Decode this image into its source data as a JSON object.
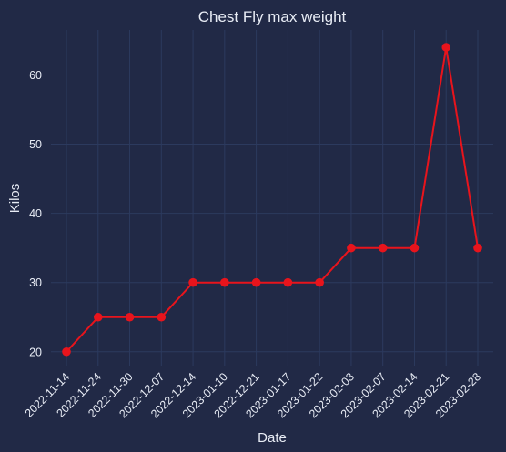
{
  "chart_data": {
    "type": "line",
    "title": "Chest Fly max weight",
    "xlabel": "Date",
    "ylabel": "Kilos",
    "x": [
      "2022-11-14",
      "2022-11-24",
      "2022-11-30",
      "2022-12-07",
      "2022-12-14",
      "2023-01-10",
      "2022-12-21",
      "2023-01-17",
      "2023-01-22",
      "2023-02-03",
      "2023-02-07",
      "2023-02-14",
      "2023-02-21",
      "2023-02-28"
    ],
    "series": [
      {
        "values": [
          20,
          25,
          25,
          25,
          30,
          30,
          30,
          30,
          30,
          35,
          35,
          35,
          64,
          35
        ]
      }
    ],
    "ylim": [
      18,
      66.5
    ],
    "yticks": [
      20,
      30,
      40,
      50,
      60
    ],
    "grid": true,
    "line_color": "#e8141c",
    "background": "#212946",
    "grid_color": "#2c3a5e"
  }
}
